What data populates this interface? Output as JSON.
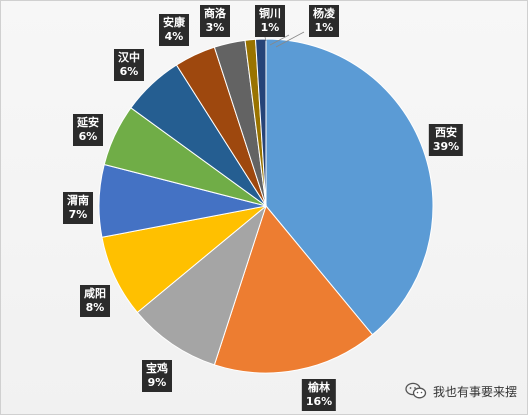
{
  "chart_data": {
    "type": "pie",
    "start_angle_deg": 0,
    "direction": "clockwise",
    "labels_show": "category-and-percent",
    "slices": [
      {
        "label": "西安",
        "percent_label": "39%",
        "value": 39,
        "color": "#5b9bd5"
      },
      {
        "label": "榆林",
        "percent_label": "16%",
        "value": 16,
        "color": "#ed7d31"
      },
      {
        "label": "宝鸡",
        "percent_label": "9%",
        "value": 9,
        "color": "#a5a5a5"
      },
      {
        "label": "咸阳",
        "percent_label": "8%",
        "value": 8,
        "color": "#ffc000"
      },
      {
        "label": "渭南",
        "percent_label": "7%",
        "value": 7,
        "color": "#4472c4"
      },
      {
        "label": "延安",
        "percent_label": "6%",
        "value": 6,
        "color": "#70ad47"
      },
      {
        "label": "汉中",
        "percent_label": "6%",
        "value": 6,
        "color": "#255e91"
      },
      {
        "label": "安康",
        "percent_label": "4%",
        "value": 4,
        "color": "#9e480e"
      },
      {
        "label": "商洛",
        "percent_label": "3%",
        "value": 3,
        "color": "#636363"
      },
      {
        "label": "铜川",
        "percent_label": "1%",
        "value": 1,
        "color": "#997300"
      },
      {
        "label": "杨凌",
        "percent_label": "1%",
        "value": 1,
        "color": "#264478"
      }
    ]
  },
  "watermark": {
    "text": "我也有事要来摆",
    "icon": "wechat-icon"
  }
}
